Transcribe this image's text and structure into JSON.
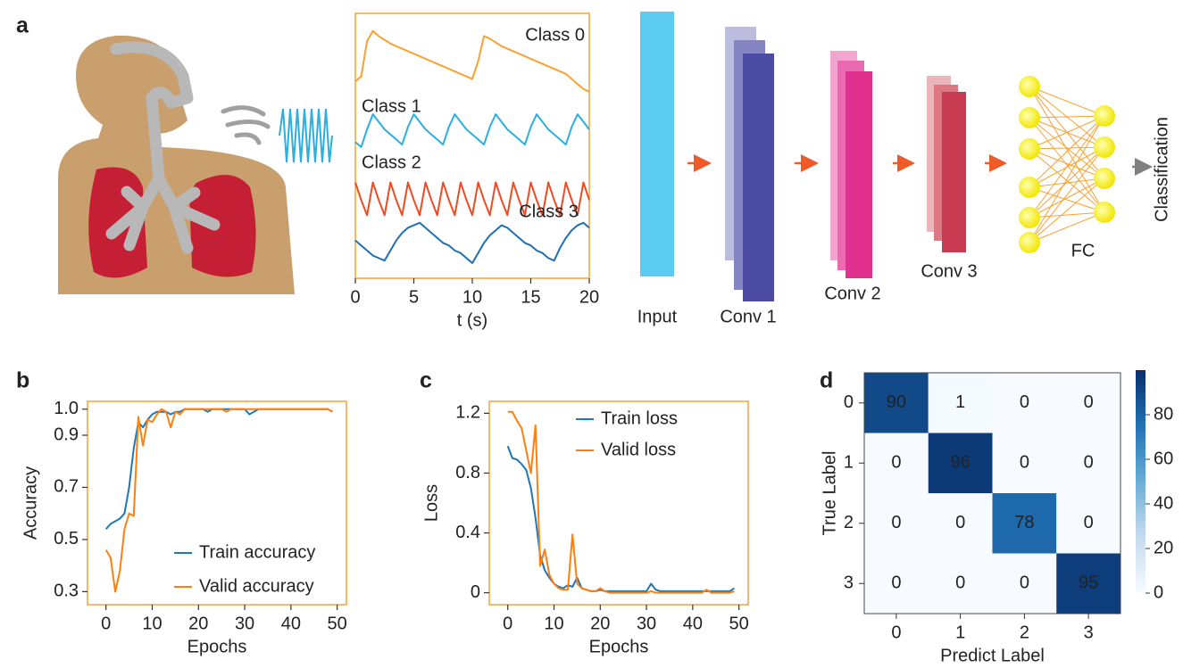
{
  "panels": [
    "a",
    "b",
    "c",
    "d"
  ],
  "diagram": {
    "layers": [
      "Input",
      "Conv 1",
      "Conv 2",
      "Conv 3",
      "FC"
    ],
    "output": "Classification"
  },
  "chart_data": [
    {
      "type": "line",
      "xlabel": "t (s)",
      "frame_color": "#f7a233",
      "x": [
        0,
        0.5,
        1,
        1.5,
        2,
        2.5,
        3,
        3.5,
        4,
        4.5,
        5,
        5.5,
        6,
        6.5,
        7,
        7.5,
        8,
        8.5,
        9,
        9.5,
        10,
        10.5,
        11,
        11.5,
        12,
        12.5,
        13,
        13.5,
        14,
        14.5,
        15,
        15.5,
        16,
        16.5,
        17,
        17.5,
        18,
        18.5,
        19,
        19.5,
        20
      ],
      "xlim": [
        0,
        20
      ],
      "xticks": [
        0,
        5,
        10,
        15,
        20
      ],
      "ylim": [
        0,
        10.5
      ],
      "series": [
        {
          "name": "Class 0",
          "color": "#f7a233",
          "values": [
            7.8,
            8.0,
            9.4,
            9.8,
            9.6,
            9.45,
            9.3,
            9.2,
            9.1,
            9.0,
            8.9,
            8.8,
            8.7,
            8.6,
            8.5,
            8.4,
            8.3,
            8.2,
            8.1,
            8.0,
            7.9,
            8.6,
            9.6,
            9.5,
            9.35,
            9.2,
            9.1,
            9.0,
            8.9,
            8.8,
            8.7,
            8.6,
            8.5,
            8.4,
            8.3,
            8.2,
            8.1,
            7.9,
            7.7,
            7.5,
            7.4
          ]
        },
        {
          "name": "Class 1",
          "color": "#2bafe0",
          "values": [
            5.4,
            5.2,
            5.9,
            6.5,
            6.2,
            5.9,
            5.7,
            5.5,
            5.3,
            6.0,
            6.5,
            6.2,
            5.9,
            5.7,
            5.5,
            5.3,
            6.0,
            6.5,
            6.2,
            5.9,
            5.7,
            5.5,
            5.3,
            6.0,
            6.5,
            6.2,
            5.9,
            5.7,
            5.5,
            5.3,
            6.0,
            6.5,
            6.2,
            5.9,
            5.7,
            5.5,
            5.3,
            6.0,
            6.5,
            6.2,
            5.9
          ]
        },
        {
          "name": "Class 2",
          "color": "#f04a23",
          "values": [
            3.8,
            3.1,
            2.5,
            3.8,
            3.1,
            2.5,
            3.8,
            3.1,
            2.5,
            3.8,
            3.1,
            2.5,
            3.8,
            3.1,
            2.5,
            3.8,
            3.1,
            2.5,
            3.8,
            3.1,
            2.5,
            3.8,
            3.1,
            2.5,
            3.8,
            3.1,
            2.5,
            3.8,
            3.1,
            2.5,
            3.8,
            3.1,
            2.5,
            3.8,
            3.1,
            2.5,
            3.8,
            3.1,
            2.5,
            3.8,
            3.1
          ]
        },
        {
          "name": "Class 3",
          "color": "#1f6fb5",
          "values": [
            1.5,
            1.3,
            1.1,
            0.9,
            0.8,
            0.7,
            1.1,
            1.5,
            1.8,
            2.0,
            2.1,
            2.2,
            2.0,
            1.8,
            1.6,
            1.4,
            1.3,
            1.1,
            1.0,
            0.8,
            0.6,
            1.0,
            1.4,
            1.7,
            1.9,
            2.1,
            2.0,
            1.8,
            1.6,
            1.4,
            1.3,
            1.1,
            1.0,
            0.8,
            0.7,
            1.2,
            1.6,
            1.9,
            2.1,
            2.2,
            2.0
          ]
        }
      ]
    },
    {
      "type": "line",
      "xlabel": "Epochs",
      "ylabel": "Accuracy",
      "frame_color": "#f7a233",
      "legend": "lower right",
      "x": [
        0,
        1,
        2,
        3,
        4,
        5,
        6,
        7,
        8,
        9,
        10,
        11,
        12,
        13,
        14,
        15,
        16,
        17,
        18,
        19,
        20,
        21,
        22,
        23,
        24,
        25,
        26,
        27,
        28,
        29,
        30,
        31,
        32,
        33,
        34,
        35,
        36,
        37,
        38,
        39,
        40,
        41,
        42,
        43,
        44,
        45,
        46,
        47,
        48,
        49
      ],
      "xlim": [
        -4,
        52
      ],
      "xticks": [
        0,
        10,
        20,
        30,
        40,
        50
      ],
      "ylim": [
        0.25,
        1.03
      ],
      "yticks": [
        0.3,
        0.5,
        0.7,
        0.9,
        {
          "value": 1,
          "label": "1.0"
        }
      ],
      "series": [
        {
          "name": "Train accuracy",
          "color": "#1f77b4",
          "values": [
            0.54,
            0.56,
            0.57,
            0.58,
            0.6,
            0.7,
            0.85,
            0.95,
            0.93,
            0.96,
            0.98,
            0.99,
            0.99,
            0.99,
            0.98,
            0.99,
            0.99,
            1,
            1,
            1,
            1,
            1,
            0.99,
            1,
            1,
            1,
            1,
            1,
            1,
            1,
            1,
            0.98,
            0.99,
            1,
            1,
            1,
            1,
            1,
            1,
            1,
            1,
            1,
            1,
            1,
            1,
            1,
            1,
            1,
            1,
            0.99
          ]
        },
        {
          "name": "Valid accuracy",
          "color": "#ff7f0e",
          "values": [
            0.46,
            0.43,
            0.3,
            0.38,
            0.54,
            0.6,
            0.59,
            0.97,
            0.86,
            0.96,
            0.95,
            0.98,
            1,
            0.99,
            0.93,
            0.99,
            0.98,
            1,
            1,
            1,
            1,
            1,
            1,
            1,
            1,
            1,
            0.99,
            1,
            1,
            1,
            1,
            1,
            1,
            1,
            1,
            1,
            1,
            1,
            1,
            1,
            1,
            1,
            1,
            1,
            1,
            1,
            1,
            1,
            1,
            0.99
          ]
        }
      ]
    },
    {
      "type": "line",
      "xlabel": "Epochs",
      "ylabel": "Loss",
      "frame_color": "#f7a233",
      "legend": "upper right",
      "x": [
        0,
        1,
        2,
        3,
        4,
        5,
        6,
        7,
        8,
        9,
        10,
        11,
        12,
        13,
        14,
        15,
        16,
        17,
        18,
        19,
        20,
        21,
        22,
        23,
        24,
        25,
        26,
        27,
        28,
        29,
        30,
        31,
        32,
        33,
        34,
        35,
        36,
        37,
        38,
        39,
        40,
        41,
        42,
        43,
        44,
        45,
        46,
        47,
        48,
        49
      ],
      "xlim": [
        -4,
        52
      ],
      "xticks": [
        0,
        10,
        20,
        30,
        40,
        50
      ],
      "ylim": [
        -0.08,
        1.28
      ],
      "yticks": [
        0,
        0.4,
        0.8,
        1.2
      ],
      "series": [
        {
          "name": "Train loss",
          "color": "#1f77b4",
          "values": [
            0.98,
            0.9,
            0.89,
            0.86,
            0.82,
            0.7,
            0.5,
            0.25,
            0.15,
            0.1,
            0.06,
            0.04,
            0.03,
            0.05,
            0.04,
            0.1,
            0.03,
            0.02,
            0.01,
            0.01,
            0.02,
            0.01,
            0.01,
            0.01,
            0.01,
            0.01,
            0.01,
            0.01,
            0.01,
            0.01,
            0.01,
            0.06,
            0.02,
            0.01,
            0.01,
            0.01,
            0.01,
            0.01,
            0.01,
            0.01,
            0.01,
            0.01,
            0.01,
            0.01,
            0.01,
            0.01,
            0.01,
            0.01,
            0.01,
            0.03
          ]
        },
        {
          "name": "Valid loss",
          "color": "#ff7f0e",
          "values": [
            1.21,
            1.21,
            1.15,
            1.1,
            0.95,
            0.8,
            1.12,
            0.18,
            0.29,
            0.12,
            0.06,
            0.03,
            0.02,
            0.02,
            0.39,
            0.06,
            0.03,
            0.02,
            0.01,
            0.01,
            0.03,
            0.01,
            0,
            0,
            0,
            0,
            0,
            0,
            0,
            0,
            0,
            0.01,
            0,
            0,
            0,
            0,
            0,
            0,
            0,
            0,
            0,
            0,
            0,
            0.02,
            0,
            0,
            0,
            0,
            0,
            0.01
          ]
        }
      ]
    },
    {
      "type": "heatmap",
      "xlabel": "Predict Label",
      "ylabel": "True Label",
      "x_categories": [
        "0",
        "1",
        "2",
        "3"
      ],
      "y_categories": [
        "0",
        "1",
        "2",
        "3"
      ],
      "values": [
        [
          90,
          1,
          0,
          0
        ],
        [
          0,
          96,
          0,
          0
        ],
        [
          0,
          0,
          78,
          0
        ],
        [
          0,
          0,
          0,
          95
        ]
      ],
      "clim": [
        0,
        100
      ],
      "cticks": [
        0,
        20,
        40,
        60,
        80
      ],
      "colormap": [
        "#f7fbff",
        "#c6dbef",
        "#6baed6",
        "#2171b5",
        "#08306b"
      ]
    }
  ]
}
